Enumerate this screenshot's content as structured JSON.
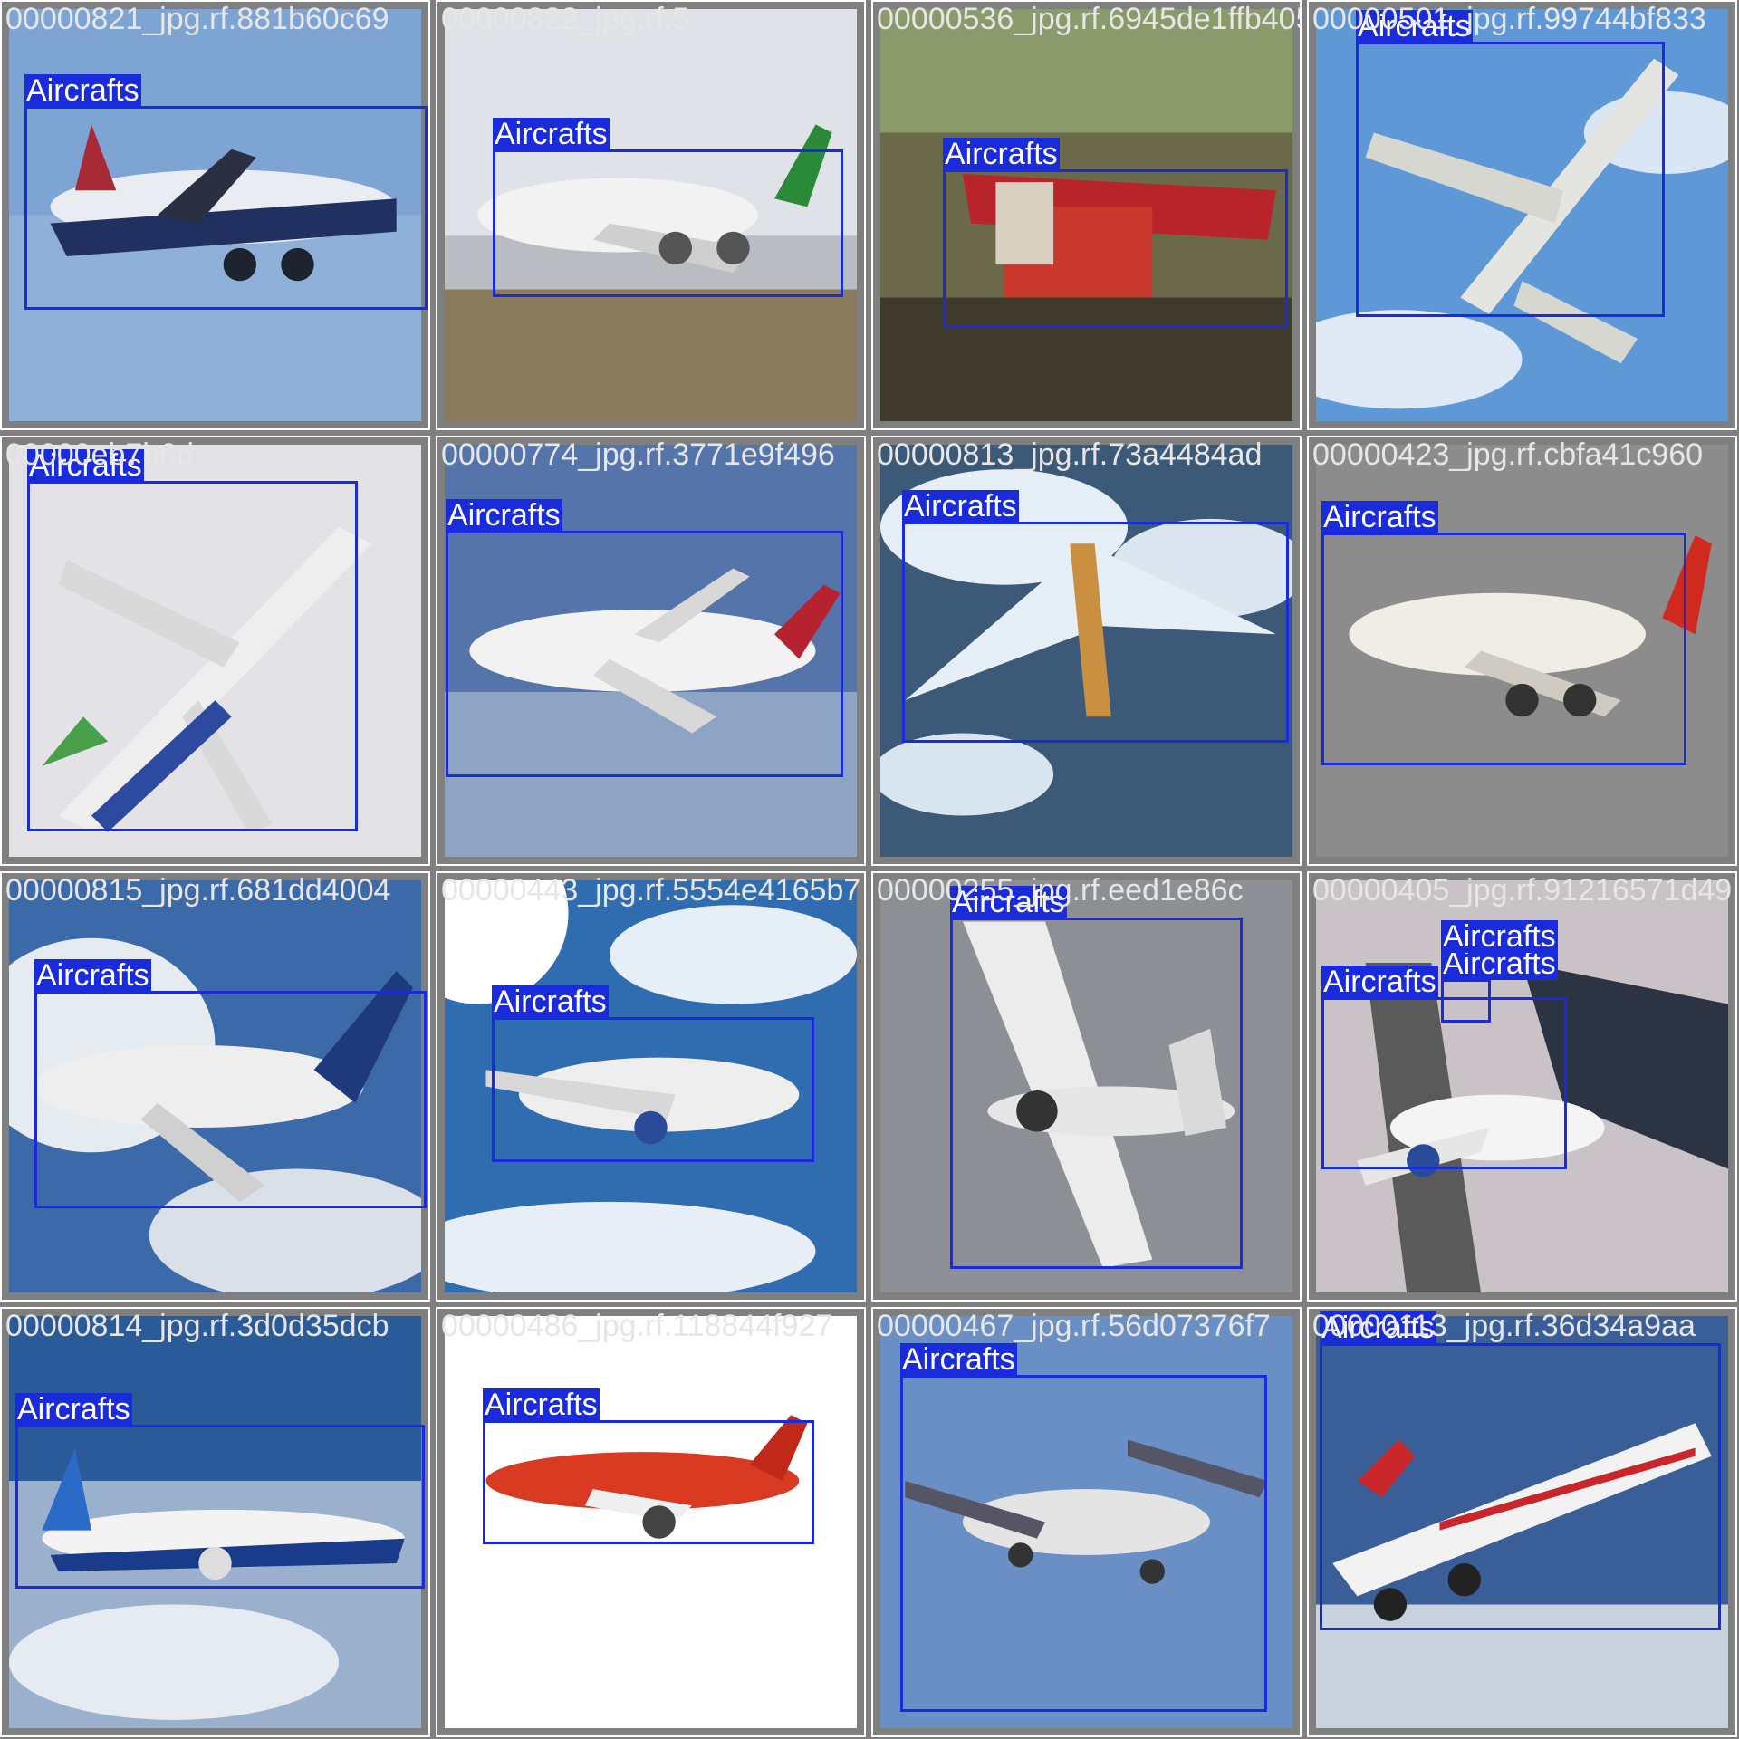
{
  "grid_title": "",
  "tiles": [
    {
      "filename": "00000821_jpg.rf.881b60c69",
      "label": "Aircrafts",
      "scene": "sky",
      "color": "#d9dde3"
    },
    {
      "filename": "00000822_jpg.rf.5",
      "label": "Aircrafts",
      "scene": "runway",
      "color": "#eeeeee"
    },
    {
      "filename": "00000536_jpg.rf.6945de1ffb405",
      "label": "Aircrafts",
      "scene": "painting",
      "color": "#d85a40"
    },
    {
      "filename": "00000501_jpg.rf.99744bf833",
      "label": "Aircrafts",
      "scene": "sky",
      "color": "#e4e4e0"
    },
    {
      "filename": "00000eb7b6d",
      "label": "Aircrafts",
      "scene": "pale",
      "color": "#eeeeee"
    },
    {
      "filename": "00000774_jpg.rf.3771e9f496",
      "label": "Aircrafts",
      "scene": "sky",
      "color": "#f2f2f2"
    },
    {
      "filename": "00000813_jpg.rf.73a4484ad",
      "label": "Aircrafts",
      "scene": "earth",
      "color": "#e6eef7"
    },
    {
      "filename": "00000423_jpg.rf.cbfa41c960",
      "label": "Aircrafts",
      "scene": "grey",
      "color": "#f0ece6"
    },
    {
      "filename": "00000815_jpg.rf.681dd4004",
      "label": "Aircrafts",
      "scene": "clouds",
      "color": "#eeeeee"
    },
    {
      "filename": "00000443_jpg.rf.5554e4165b7",
      "label": "Aircrafts",
      "scene": "bright",
      "color": "#eeeeee"
    },
    {
      "filename": "00000255_jpg.rf.eed1e86c",
      "label": "Aircrafts",
      "scene": "grey",
      "color": "#ececec"
    },
    {
      "filename": "00000405_jpg.rf.91216571d49",
      "label": "Aircrafts",
      "scene": "airport",
      "color": "#f4f4f4"
    },
    {
      "filename": "00000814_jpg.rf.3d0d35dcb",
      "label": "Aircrafts",
      "scene": "clouds",
      "color": "#f3f3f3"
    },
    {
      "filename": "00000486_jpg.rf.118844f927",
      "label": "Aircrafts",
      "scene": "white",
      "color": "#d83a22"
    },
    {
      "filename": "00000467_jpg.rf.56d07376f7",
      "label": "Aircrafts",
      "scene": "sky",
      "color": "#e4e4e4"
    },
    {
      "filename": "00000113_jpg.rf.36d34a9aa",
      "label": "Aircrafts",
      "scene": "clouds",
      "color": "#f2f2f2"
    }
  ],
  "extra_labels": [
    "Aircrafts",
    "Aircrafts"
  ]
}
